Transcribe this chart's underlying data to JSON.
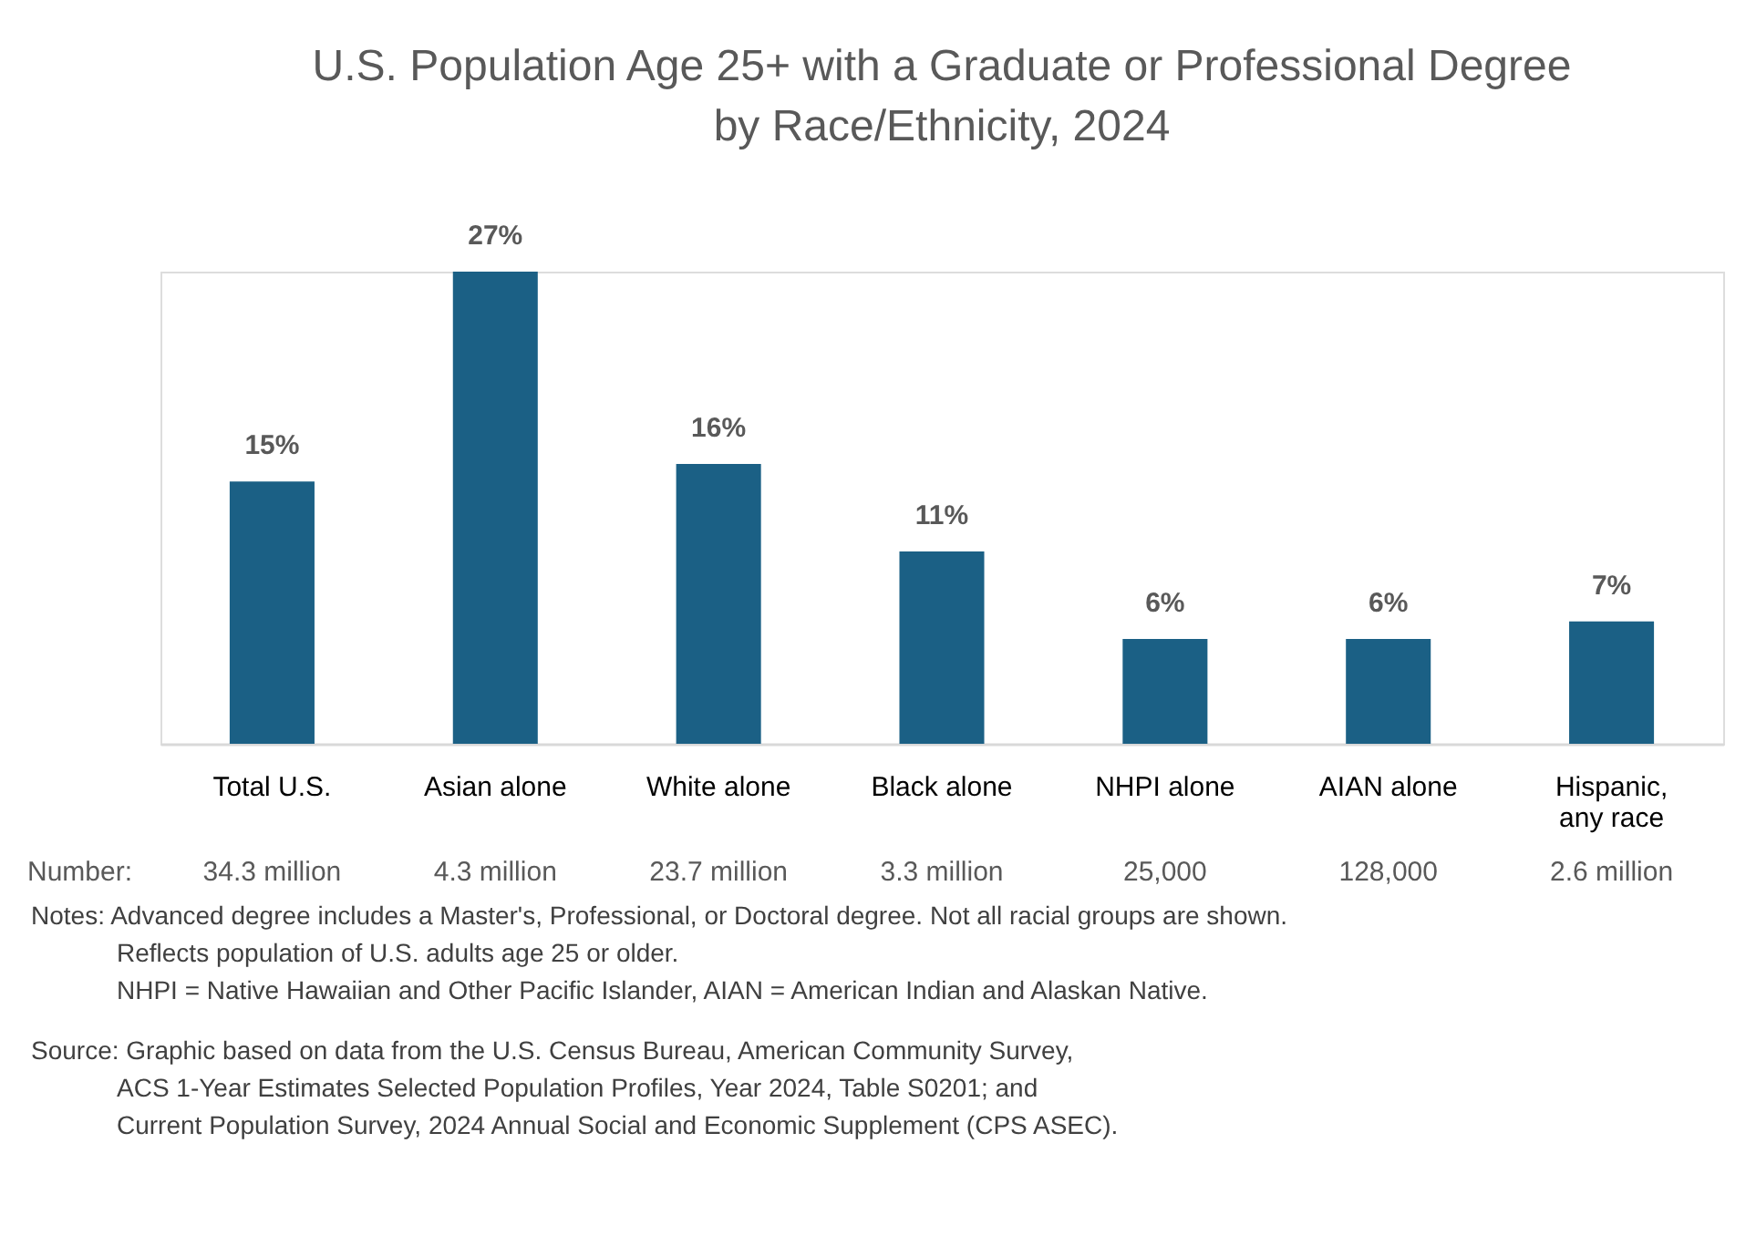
{
  "chart_data": {
    "type": "bar",
    "title": "U.S. Population Age 25+ with a Graduate or Professional Degree\nby Race/Ethnicity, 2024",
    "categories": [
      "Total U.S.",
      "Asian alone",
      "White alone",
      "Black alone",
      "NHPI alone",
      "AIAN alone",
      "Hispanic, any race"
    ],
    "values": [
      15,
      27,
      16,
      11,
      6,
      6,
      7
    ],
    "value_labels": [
      "15%",
      "27%",
      "16%",
      "11%",
      "6%",
      "6%",
      "7%"
    ],
    "color": "#1b6085",
    "grid": false,
    "annotations": [
      "Number:",
      "34.3 million",
      "4.3 million",
      "23.7 million",
      "3.3 million",
      "25,000",
      "128,000",
      "2.6 million",
      "Notes: Advanced degree includes a Master's, Professional, or Doctoral degree.  Not all racial groups are shown.",
      "Reflects population of U.S. adults age 25 or older.",
      "NHPI = Native Hawaiian and Other Pacific Islander, AIAN = American Indian and Alaskan Native.",
      "Source: Graphic based on data from the U.S. Census Bureau,  American Community Survey,",
      "ACS 1-Year Estimates Selected Population Profiles, Year 2024, Table S0201; and",
      "Current Population Survey, 2024 Annual Social and Economic Supplement (CPS ASEC)."
    ]
  }
}
